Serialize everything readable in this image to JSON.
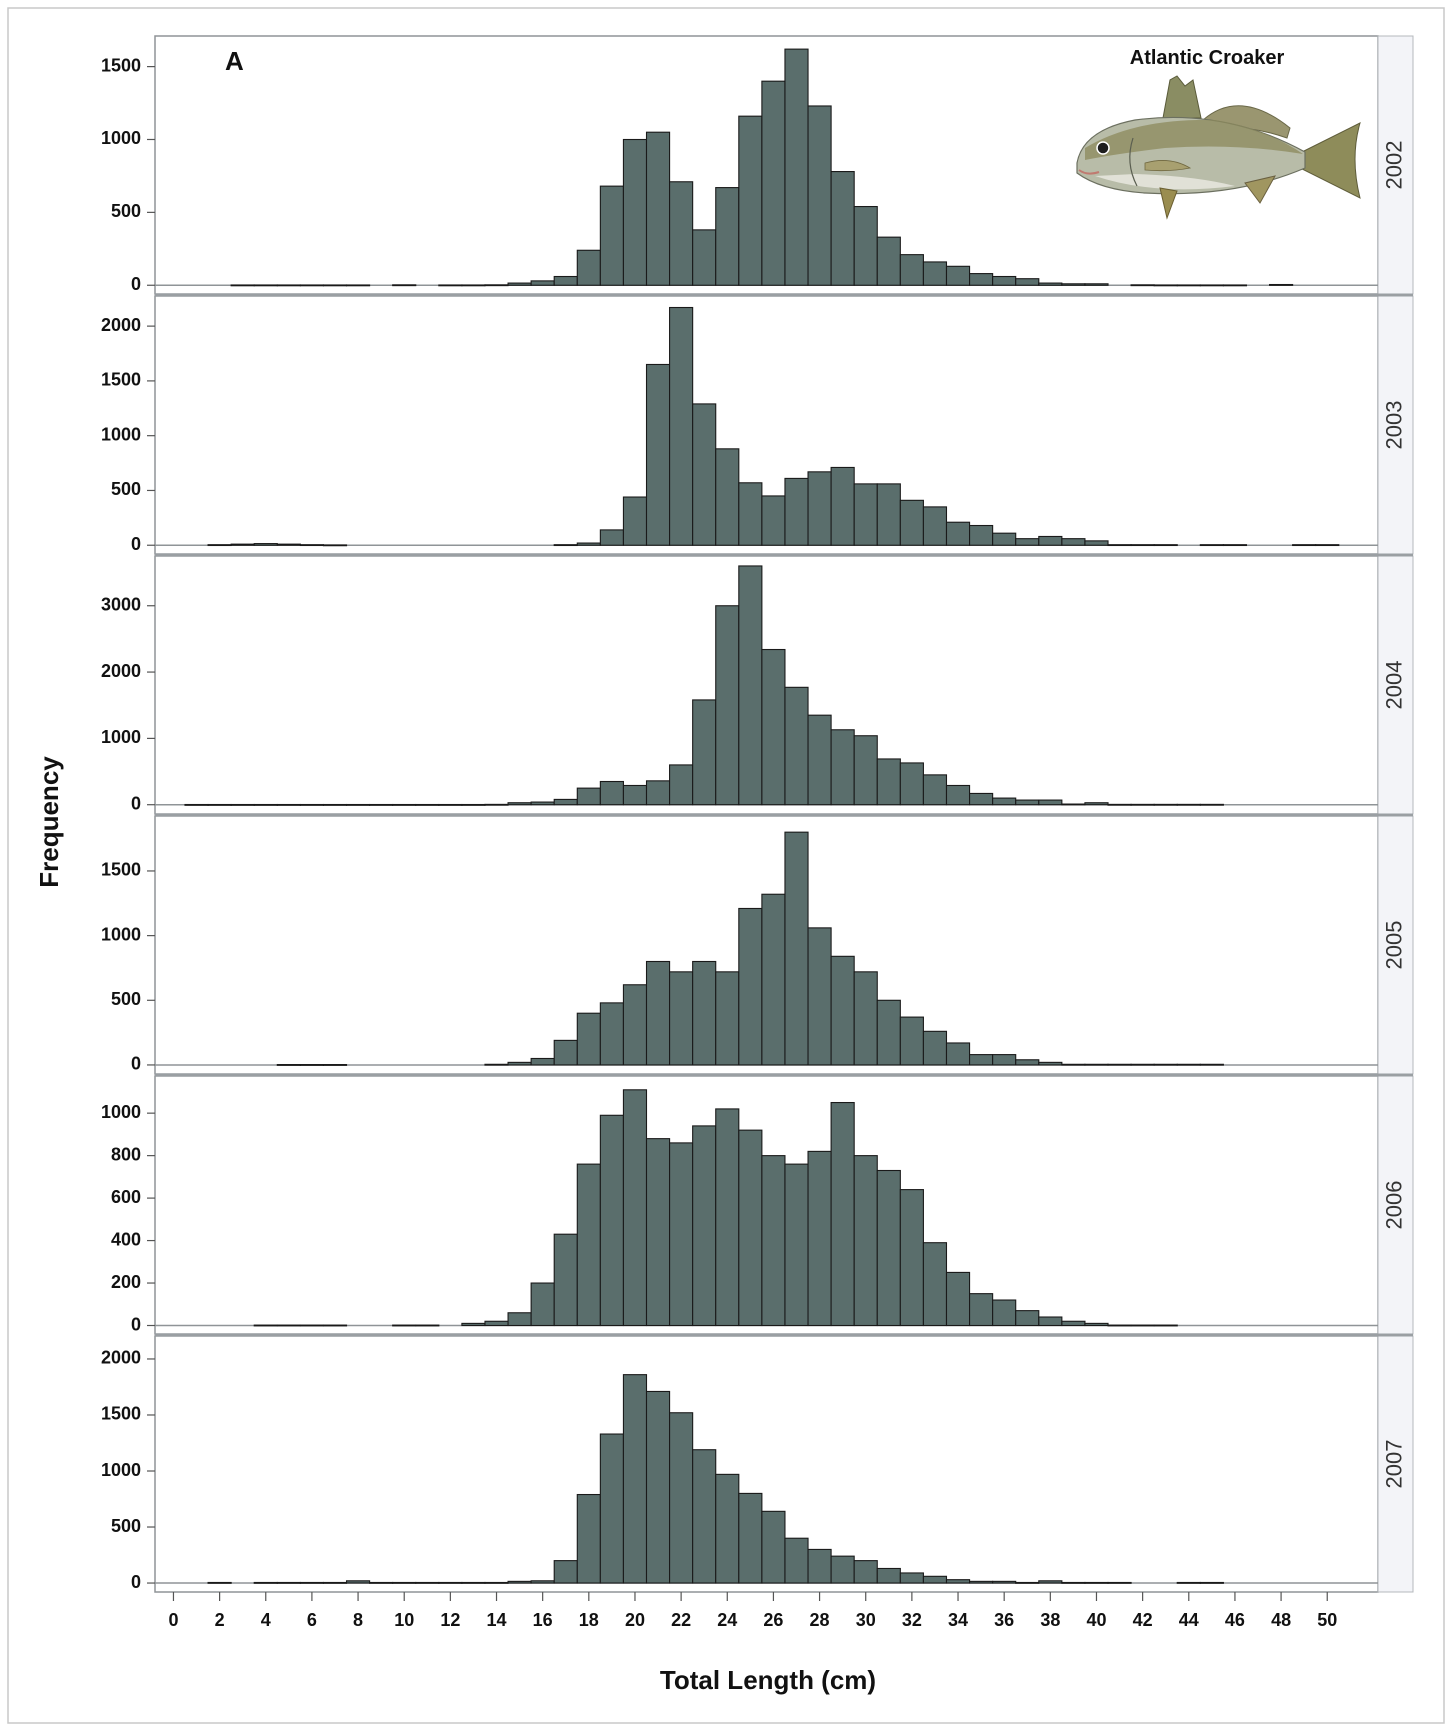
{
  "chart_data": {
    "type": "bar",
    "panel_label": "A",
    "species_label": "Atlantic Croaker",
    "xlabel": "Total Length (cm)",
    "ylabel": "Frequency",
    "xlim": [
      -0.8,
      52.2
    ],
    "xticks": [
      0,
      2,
      4,
      6,
      8,
      10,
      12,
      14,
      16,
      18,
      20,
      22,
      24,
      26,
      28,
      30,
      32,
      34,
      36,
      38,
      40,
      42,
      44,
      46,
      48,
      50
    ],
    "bar_width": 1,
    "bar_color": "#5a6e6c",
    "bar_edge_color": "#1a1a1a",
    "grid": false,
    "panels": [
      {
        "year": "2002",
        "ylim": [
          -60,
          1710
        ],
        "yticks": [
          0,
          500,
          1000,
          1500
        ],
        "bars": [
          [
            3,
            2
          ],
          [
            4,
            2
          ],
          [
            5,
            2
          ],
          [
            6,
            2
          ],
          [
            7,
            2
          ],
          [
            8,
            2
          ],
          [
            10,
            3
          ],
          [
            12,
            2
          ],
          [
            13,
            2
          ],
          [
            14,
            3
          ],
          [
            15,
            15
          ],
          [
            16,
            30
          ],
          [
            17,
            60
          ],
          [
            18,
            240
          ],
          [
            19,
            680
          ],
          [
            20,
            1000
          ],
          [
            21,
            1050
          ],
          [
            22,
            710
          ],
          [
            23,
            380
          ],
          [
            24,
            670
          ],
          [
            25,
            1160
          ],
          [
            26,
            1400
          ],
          [
            27,
            1620
          ],
          [
            28,
            1230
          ],
          [
            29,
            780
          ],
          [
            30,
            540
          ],
          [
            31,
            330
          ],
          [
            32,
            210
          ],
          [
            33,
            160
          ],
          [
            34,
            130
          ],
          [
            35,
            80
          ],
          [
            36,
            60
          ],
          [
            37,
            45
          ],
          [
            38,
            15
          ],
          [
            39,
            10
          ],
          [
            40,
            10
          ],
          [
            42,
            3
          ],
          [
            43,
            2
          ],
          [
            44,
            2
          ],
          [
            45,
            2
          ],
          [
            46,
            2
          ],
          [
            48,
            5
          ]
        ]
      },
      {
        "year": "2003",
        "ylim": [
          -80,
          2275
        ],
        "yticks": [
          0,
          500,
          1000,
          1500,
          2000
        ],
        "bars": [
          [
            2,
            5
          ],
          [
            3,
            10
          ],
          [
            4,
            15
          ],
          [
            5,
            10
          ],
          [
            6,
            5
          ],
          [
            7,
            3
          ],
          [
            17,
            5
          ],
          [
            18,
            20
          ],
          [
            19,
            140
          ],
          [
            20,
            440
          ],
          [
            21,
            1650
          ],
          [
            22,
            2170
          ],
          [
            23,
            1290
          ],
          [
            24,
            880
          ],
          [
            25,
            570
          ],
          [
            26,
            450
          ],
          [
            27,
            610
          ],
          [
            28,
            670
          ],
          [
            29,
            710
          ],
          [
            30,
            560
          ],
          [
            31,
            560
          ],
          [
            32,
            410
          ],
          [
            33,
            350
          ],
          [
            34,
            210
          ],
          [
            35,
            180
          ],
          [
            36,
            110
          ],
          [
            37,
            60
          ],
          [
            38,
            80
          ],
          [
            39,
            60
          ],
          [
            40,
            40
          ],
          [
            41,
            5
          ],
          [
            42,
            5
          ],
          [
            43,
            5
          ],
          [
            45,
            5
          ],
          [
            46,
            5
          ],
          [
            49,
            5
          ],
          [
            50,
            5
          ]
        ]
      },
      {
        "year": "2004",
        "ylim": [
          -140,
          3750
        ],
        "yticks": [
          0,
          1000,
          2000,
          3000
        ],
        "bars": [
          [
            1,
            3
          ],
          [
            2,
            3
          ],
          [
            3,
            3
          ],
          [
            4,
            3
          ],
          [
            5,
            3
          ],
          [
            6,
            3
          ],
          [
            7,
            3
          ],
          [
            8,
            3
          ],
          [
            9,
            3
          ],
          [
            10,
            3
          ],
          [
            11,
            3
          ],
          [
            12,
            3
          ],
          [
            13,
            3
          ],
          [
            14,
            5
          ],
          [
            15,
            30
          ],
          [
            16,
            40
          ],
          [
            17,
            80
          ],
          [
            18,
            250
          ],
          [
            19,
            350
          ],
          [
            20,
            290
          ],
          [
            21,
            360
          ],
          [
            22,
            600
          ],
          [
            23,
            1580
          ],
          [
            24,
            3000
          ],
          [
            25,
            3600
          ],
          [
            26,
            2340
          ],
          [
            27,
            1770
          ],
          [
            28,
            1350
          ],
          [
            29,
            1130
          ],
          [
            30,
            1040
          ],
          [
            31,
            690
          ],
          [
            32,
            630
          ],
          [
            33,
            450
          ],
          [
            34,
            290
          ],
          [
            35,
            170
          ],
          [
            36,
            100
          ],
          [
            37,
            70
          ],
          [
            38,
            70
          ],
          [
            39,
            10
          ],
          [
            40,
            30
          ],
          [
            41,
            5
          ],
          [
            42,
            5
          ],
          [
            43,
            5
          ],
          [
            44,
            5
          ],
          [
            45,
            5
          ]
        ]
      },
      {
        "year": "2005",
        "ylim": [
          -70,
          1925
        ],
        "yticks": [
          0,
          500,
          1000,
          1500
        ],
        "bars": [
          [
            5,
            3
          ],
          [
            6,
            3
          ],
          [
            7,
            3
          ],
          [
            14,
            5
          ],
          [
            15,
            20
          ],
          [
            16,
            50
          ],
          [
            17,
            190
          ],
          [
            18,
            400
          ],
          [
            19,
            480
          ],
          [
            20,
            620
          ],
          [
            21,
            800
          ],
          [
            22,
            720
          ],
          [
            23,
            800
          ],
          [
            24,
            720
          ],
          [
            25,
            1210
          ],
          [
            26,
            1320
          ],
          [
            27,
            1800
          ],
          [
            28,
            1060
          ],
          [
            29,
            840
          ],
          [
            30,
            720
          ],
          [
            31,
            500
          ],
          [
            32,
            370
          ],
          [
            33,
            260
          ],
          [
            34,
            170
          ],
          [
            35,
            80
          ],
          [
            36,
            80
          ],
          [
            37,
            40
          ],
          [
            38,
            20
          ],
          [
            39,
            5
          ],
          [
            40,
            5
          ],
          [
            41,
            5
          ],
          [
            42,
            5
          ],
          [
            43,
            5
          ],
          [
            44,
            5
          ],
          [
            45,
            5
          ]
        ]
      },
      {
        "year": "2006",
        "ylim": [
          -40,
          1175
        ],
        "yticks": [
          0,
          200,
          400,
          600,
          800,
          1000
        ],
        "bars": [
          [
            4,
            2
          ],
          [
            5,
            2
          ],
          [
            6,
            2
          ],
          [
            7,
            2
          ],
          [
            10,
            2
          ],
          [
            11,
            2
          ],
          [
            13,
            10
          ],
          [
            14,
            20
          ],
          [
            15,
            60
          ],
          [
            16,
            200
          ],
          [
            17,
            430
          ],
          [
            18,
            760
          ],
          [
            19,
            990
          ],
          [
            20,
            1110
          ],
          [
            21,
            880
          ],
          [
            22,
            860
          ],
          [
            23,
            940
          ],
          [
            24,
            1020
          ],
          [
            25,
            920
          ],
          [
            26,
            800
          ],
          [
            27,
            760
          ],
          [
            28,
            820
          ],
          [
            29,
            1050
          ],
          [
            30,
            800
          ],
          [
            31,
            730
          ],
          [
            32,
            640
          ],
          [
            33,
            390
          ],
          [
            34,
            250
          ],
          [
            35,
            150
          ],
          [
            36,
            120
          ],
          [
            37,
            70
          ],
          [
            38,
            40
          ],
          [
            39,
            20
          ],
          [
            40,
            10
          ],
          [
            41,
            2
          ],
          [
            42,
            2
          ],
          [
            43,
            2
          ]
        ]
      },
      {
        "year": "2007",
        "ylim": [
          -80,
          2205
        ],
        "yticks": [
          0,
          500,
          1000,
          1500,
          2000
        ],
        "bars": [
          [
            2,
            5
          ],
          [
            4,
            5
          ],
          [
            5,
            5
          ],
          [
            6,
            5
          ],
          [
            7,
            5
          ],
          [
            8,
            20
          ],
          [
            9,
            5
          ],
          [
            10,
            5
          ],
          [
            11,
            5
          ],
          [
            12,
            5
          ],
          [
            13,
            5
          ],
          [
            14,
            5
          ],
          [
            15,
            15
          ],
          [
            16,
            20
          ],
          [
            17,
            200
          ],
          [
            18,
            790
          ],
          [
            19,
            1330
          ],
          [
            20,
            1860
          ],
          [
            21,
            1710
          ],
          [
            22,
            1520
          ],
          [
            23,
            1190
          ],
          [
            24,
            970
          ],
          [
            25,
            800
          ],
          [
            26,
            640
          ],
          [
            27,
            400
          ],
          [
            28,
            300
          ],
          [
            29,
            240
          ],
          [
            30,
            200
          ],
          [
            31,
            130
          ],
          [
            32,
            90
          ],
          [
            33,
            60
          ],
          [
            34,
            30
          ],
          [
            35,
            15
          ],
          [
            36,
            15
          ],
          [
            37,
            5
          ],
          [
            38,
            20
          ],
          [
            39,
            5
          ],
          [
            40,
            5
          ],
          [
            41,
            5
          ],
          [
            44,
            5
          ],
          [
            45,
            5
          ]
        ]
      }
    ]
  }
}
